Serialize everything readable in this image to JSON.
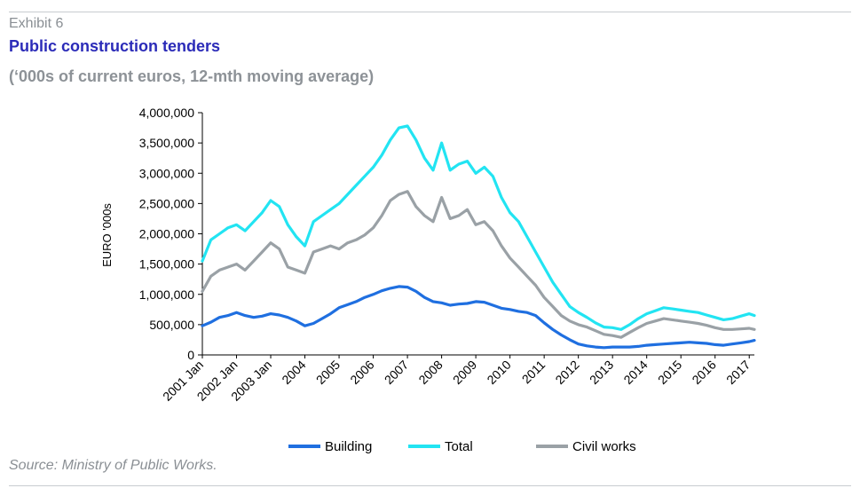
{
  "header": {
    "exhibit": "Exhibit 6",
    "title": "Public construction tenders",
    "subtitle": "(‘000s of current euros, 12-mth moving average)"
  },
  "footer": {
    "source": "Source: Ministry of Public Works."
  },
  "chart_data": {
    "type": "line",
    "ylabel": "EURO '000s",
    "ylim": [
      0,
      4000000
    ],
    "yticks": [
      0,
      500000,
      1000000,
      1500000,
      2000000,
      2500000,
      3000000,
      3500000,
      4000000
    ],
    "ytick_labels": [
      "0",
      "500,000",
      "1,000,000",
      "1,500,000",
      "2,000,000",
      "2,500,000",
      "3,000,000",
      "3,500,000",
      "4,000,000"
    ],
    "xlim": [
      2001.0,
      2017.15
    ],
    "xtick_labels": [
      "2001  Jan",
      "2002  Jan",
      "2003  Jan",
      "2004",
      "2005",
      "2006",
      "2007",
      "2008",
      "2009",
      "2010",
      "2011",
      "2012",
      "2013",
      "2014",
      "2015",
      "2016",
      "2017"
    ],
    "grid": false,
    "legend": "bottom",
    "x": [
      2001.0,
      2001.25,
      2001.5,
      2001.75,
      2002.0,
      2002.25,
      2002.5,
      2002.75,
      2003.0,
      2003.25,
      2003.5,
      2003.75,
      2004.0,
      2004.25,
      2004.5,
      2004.75,
      2005.0,
      2005.25,
      2005.5,
      2005.75,
      2006.0,
      2006.25,
      2006.5,
      2006.75,
      2007.0,
      2007.25,
      2007.5,
      2007.75,
      2008.0,
      2008.25,
      2008.5,
      2008.75,
      2009.0,
      2009.25,
      2009.5,
      2009.75,
      2010.0,
      2010.25,
      2010.5,
      2010.75,
      2011.0,
      2011.25,
      2011.5,
      2011.75,
      2012.0,
      2012.25,
      2012.5,
      2012.75,
      2013.0,
      2013.25,
      2013.5,
      2013.75,
      2014.0,
      2014.25,
      2014.5,
      2014.75,
      2015.0,
      2015.25,
      2015.5,
      2015.75,
      2016.0,
      2016.25,
      2016.5,
      2016.75,
      2017.0,
      2017.15
    ],
    "series": [
      {
        "name": "Building",
        "color": "#1f6fe0",
        "values": [
          480000,
          540000,
          620000,
          650000,
          700000,
          650000,
          620000,
          640000,
          680000,
          660000,
          620000,
          560000,
          480000,
          520000,
          600000,
          680000,
          780000,
          830000,
          880000,
          950000,
          1000000,
          1060000,
          1100000,
          1130000,
          1120000,
          1050000,
          950000,
          880000,
          860000,
          820000,
          840000,
          850000,
          880000,
          870000,
          820000,
          770000,
          750000,
          720000,
          700000,
          650000,
          530000,
          420000,
          330000,
          250000,
          180000,
          150000,
          130000,
          120000,
          130000,
          130000,
          130000,
          140000,
          160000,
          170000,
          180000,
          190000,
          200000,
          210000,
          200000,
          190000,
          170000,
          160000,
          180000,
          200000,
          220000,
          240000
        ]
      },
      {
        "name": "Total",
        "color": "#22e4f2",
        "values": [
          1550000,
          1900000,
          2000000,
          2100000,
          2150000,
          2050000,
          2200000,
          2350000,
          2550000,
          2450000,
          2150000,
          1950000,
          1800000,
          2200000,
          2300000,
          2400000,
          2500000,
          2650000,
          2800000,
          2950000,
          3100000,
          3300000,
          3550000,
          3750000,
          3780000,
          3550000,
          3250000,
          3050000,
          3500000,
          3050000,
          3150000,
          3200000,
          3000000,
          3100000,
          2950000,
          2600000,
          2350000,
          2200000,
          1950000,
          1700000,
          1450000,
          1200000,
          1000000,
          800000,
          700000,
          620000,
          530000,
          460000,
          450000,
          420000,
          500000,
          600000,
          680000,
          730000,
          780000,
          760000,
          740000,
          720000,
          700000,
          660000,
          620000,
          580000,
          600000,
          640000,
          680000,
          650000
        ]
      },
      {
        "name": "Civil works",
        "color": "#9aa1a6",
        "values": [
          1050000,
          1300000,
          1400000,
          1450000,
          1500000,
          1400000,
          1550000,
          1700000,
          1850000,
          1750000,
          1450000,
          1400000,
          1350000,
          1700000,
          1750000,
          1800000,
          1750000,
          1850000,
          1900000,
          1980000,
          2100000,
          2300000,
          2550000,
          2650000,
          2700000,
          2450000,
          2300000,
          2200000,
          2600000,
          2250000,
          2300000,
          2400000,
          2150000,
          2200000,
          2050000,
          1800000,
          1600000,
          1450000,
          1300000,
          1150000,
          950000,
          800000,
          650000,
          560000,
          500000,
          460000,
          400000,
          340000,
          320000,
          290000,
          370000,
          450000,
          520000,
          560000,
          600000,
          580000,
          560000,
          540000,
          520000,
          490000,
          450000,
          420000,
          420000,
          430000,
          440000,
          420000
        ]
      }
    ]
  }
}
